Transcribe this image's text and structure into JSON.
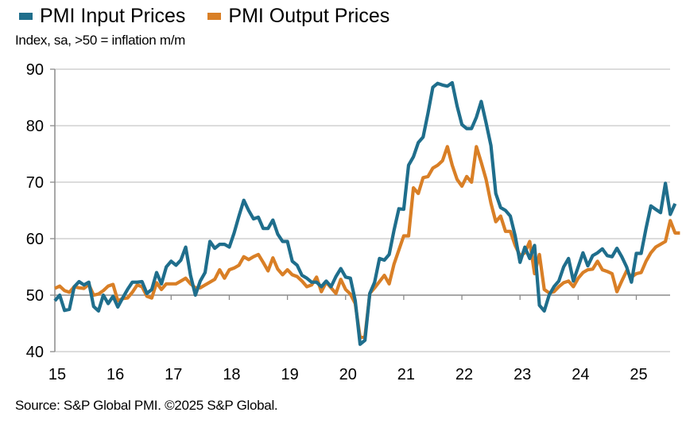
{
  "chart_data": {
    "type": "line",
    "title": "",
    "subtitle": "Index, sa, >50 = inflation m/m",
    "source": "Source: S&P Global PMI. ©2025 S&P Global.",
    "xlabel": "",
    "ylabel": "",
    "ylim": [
      40,
      90
    ],
    "yticks": [
      40,
      50,
      60,
      70,
      80,
      90
    ],
    "xticks": [
      "15",
      "16",
      "17",
      "18",
      "19",
      "20",
      "21",
      "22",
      "23",
      "24",
      "25"
    ],
    "x_start": "2015-01",
    "x_frequency": "monthly",
    "x_axis_crosses_at": 50,
    "grid": "horizontal",
    "legend_position": "top-left",
    "series": [
      {
        "name": "PMI Input Prices",
        "color": "#1f6e8c",
        "values": [
          49,
          50,
          47.3,
          47.5,
          51.5,
          52.4,
          51.8,
          52.3,
          48,
          47.2,
          50,
          48.5,
          49.8,
          47.9,
          49.5,
          51,
          52.3,
          52.3,
          52.4,
          50.3,
          51,
          54,
          52,
          55,
          56,
          55.3,
          56.2,
          58.5,
          53.5,
          50,
          52.5,
          54,
          59.5,
          58.3,
          59,
          59,
          58.5,
          61,
          64,
          66.8,
          65,
          63.5,
          63.8,
          61.8,
          61.8,
          63.3,
          60.8,
          59.5,
          59.5,
          56,
          55.3,
          53.5,
          53,
          52.3,
          52.3,
          51.5,
          52.5,
          51.5,
          53.3,
          54.7,
          53.2,
          53,
          49,
          41.3,
          42,
          50.3,
          52.3,
          56.5,
          56.2,
          57.2,
          61.5,
          65.3,
          65.2,
          73,
          74.5,
          77,
          78,
          82.2,
          86.8,
          87.5,
          87.2,
          87,
          87.6,
          83.5,
          80.2,
          79.5,
          79.5,
          81.5,
          84.3,
          80.5,
          76.5,
          68,
          65.5,
          65,
          64,
          60.5,
          55.8,
          58.5,
          56.5,
          58.8,
          48.2,
          47.2,
          50,
          51.5,
          52.5,
          55,
          56.5,
          52.5,
          55,
          57.5,
          55.2,
          57,
          57.5,
          58.2,
          57,
          56.8,
          58.3,
          56.8,
          55,
          52.3,
          57.4,
          57.4,
          61.8,
          65.8,
          65.2,
          64.6,
          69.8,
          64.3,
          66.2
        ]
      },
      {
        "name": "PMI Output Prices",
        "color": "#d97f26",
        "values": [
          51.2,
          51.6,
          50.8,
          50.5,
          51.5,
          51.3,
          51.2,
          51.9,
          50,
          50.2,
          50.8,
          51.6,
          51.9,
          49,
          49.4,
          49.5,
          50.5,
          51.8,
          51.5,
          49.8,
          49.5,
          52.2,
          51,
          52,
          52,
          52,
          52.5,
          53,
          52,
          51.3,
          51.3,
          51.8,
          52.3,
          52.8,
          54.5,
          53,
          54.5,
          54.8,
          55.3,
          56.8,
          56.3,
          56.8,
          57.2,
          55.8,
          54.3,
          56.6,
          54.6,
          53.6,
          54.5,
          53.6,
          53.3,
          52.5,
          51.5,
          51.8,
          53.2,
          50.6,
          52.3,
          51.3,
          50.3,
          52.8,
          51,
          50.2,
          48.5,
          42.5,
          42.6,
          50.3,
          51.3,
          52.4,
          53.5,
          52,
          55.5,
          58,
          60.5,
          60.5,
          69,
          68,
          70.8,
          71,
          72.5,
          73,
          73.8,
          76.3,
          73,
          70.5,
          69.3,
          71,
          70,
          76.3,
          73.5,
          70.5,
          66.3,
          63,
          64,
          61.3,
          61.3,
          58.8,
          57,
          57.5,
          59.5,
          53.8,
          57.2,
          51,
          50.4,
          50.6,
          51.5,
          52.2,
          52.5,
          51.5,
          53,
          54,
          54.5,
          54.6,
          56,
          54.5,
          54.2,
          53.8,
          50.6,
          52.5,
          54.3,
          53.2,
          53.8,
          54,
          56,
          57.5,
          58.5,
          59,
          59.5,
          63.2,
          61,
          61
        ]
      }
    ]
  }
}
